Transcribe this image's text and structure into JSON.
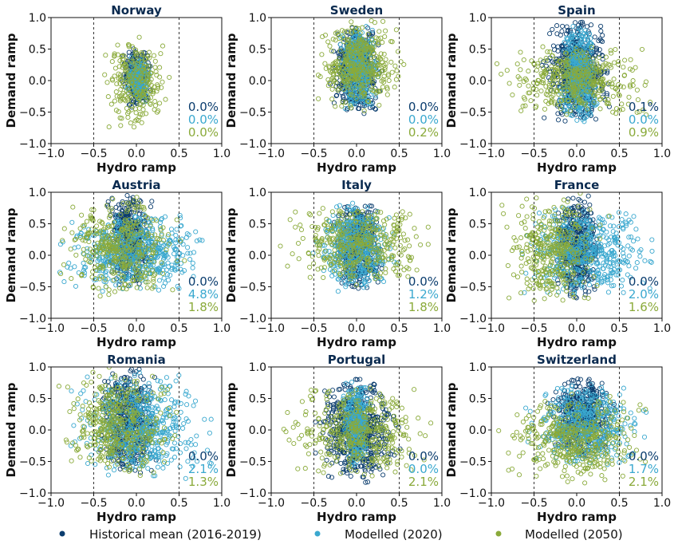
{
  "chart_data": {
    "type": "scatter",
    "xlabel": "Hydro ramp",
    "ylabel": "Demand ramp",
    "xlim": [
      -1.0,
      1.0
    ],
    "ylim": [
      -1.0,
      1.0
    ],
    "xticks": [
      "−1.0",
      "−0.5",
      "0.0",
      "0.5",
      "1.0"
    ],
    "yticks": [
      "1.0",
      "0.5",
      "0.0",
      "−0.5",
      "−1.0"
    ],
    "threshold_lines_x": [
      -0.5,
      0.5
    ],
    "grid": false,
    "legend_position": "bottom",
    "series": [
      {
        "name": "Historical mean (2016-2019)",
        "color": "#0b3d6e"
      },
      {
        "name": "Modelled (2020)",
        "color": "#3aa8cf"
      },
      {
        "name": "Modelled (2050)",
        "color": "#8aaa3a"
      }
    ],
    "panels": [
      {
        "title": "Norway",
        "percentages": [
          "0.0%",
          "0.0%",
          "0.0%"
        ],
        "spread": [
          {
            "x": [
              -0.2,
              0.2
            ],
            "y": [
              -0.45,
              0.55
            ],
            "n": 260
          },
          {
            "x": [
              -0.15,
              0.18
            ],
            "y": [
              -0.35,
              0.4
            ],
            "n": 200
          },
          {
            "x": [
              -0.5,
              0.5
            ],
            "y": [
              -0.8,
              0.75
            ],
            "n": 230
          }
        ]
      },
      {
        "title": "Sweden",
        "percentages": [
          "0.0%",
          "0.0%",
          "0.2%"
        ],
        "spread": [
          {
            "x": [
              -0.35,
              0.35
            ],
            "y": [
              -0.55,
              0.9
            ],
            "n": 420
          },
          {
            "x": [
              -0.25,
              0.3
            ],
            "y": [
              -0.5,
              0.9
            ],
            "n": 380
          },
          {
            "x": [
              -0.6,
              0.65
            ],
            "y": [
              -0.55,
              1.0
            ],
            "n": 360
          }
        ]
      },
      {
        "title": "Spain",
        "percentages": [
          "0.1%",
          "0.0%",
          "0.9%"
        ],
        "spread": [
          {
            "x": [
              -0.45,
              0.45
            ],
            "y": [
              -0.7,
              1.0
            ],
            "n": 520
          },
          {
            "x": [
              -0.25,
              0.3
            ],
            "y": [
              -0.7,
              0.9
            ],
            "n": 400
          },
          {
            "x": [
              -1.0,
              1.0
            ],
            "y": [
              -0.6,
              0.6
            ],
            "n": 380
          }
        ]
      },
      {
        "title": "Austria",
        "percentages": [
          "0.0%",
          "4.8%",
          "1.8%"
        ],
        "spread": [
          {
            "x": [
              -0.4,
              0.25
            ],
            "y": [
              -0.55,
              1.0
            ],
            "n": 380
          },
          {
            "x": [
              -1.0,
              1.0
            ],
            "y": [
              -0.6,
              0.7
            ],
            "n": 520
          },
          {
            "x": [
              -1.0,
              0.65
            ],
            "y": [
              -0.7,
              1.0
            ],
            "n": 360
          }
        ]
      },
      {
        "title": "Italy",
        "percentages": [
          "0.0%",
          "1.2%",
          "1.8%"
        ],
        "spread": [
          {
            "x": [
              -0.3,
              0.35
            ],
            "y": [
              -0.55,
              0.85
            ],
            "n": 420
          },
          {
            "x": [
              -0.6,
              0.55
            ],
            "y": [
              -0.6,
              0.85
            ],
            "n": 440
          },
          {
            "x": [
              -1.0,
              1.0
            ],
            "y": [
              -0.5,
              0.85
            ],
            "n": 360
          }
        ]
      },
      {
        "title": "France",
        "percentages": [
          "0.0%",
          "2.0%",
          "1.6%"
        ],
        "spread": [
          {
            "x": [
              -0.3,
              0.3
            ],
            "y": [
              -0.7,
              1.0
            ],
            "n": 420
          },
          {
            "x": [
              -0.8,
              1.0
            ],
            "y": [
              -0.65,
              0.8
            ],
            "n": 460
          },
          {
            "x": [
              -1.0,
              0.45
            ],
            "y": [
              -0.8,
              1.0
            ],
            "n": 340
          }
        ]
      },
      {
        "title": "Romania",
        "percentages": [
          "0.0%",
          "2.1%",
          "1.3%"
        ],
        "spread": [
          {
            "x": [
              -0.5,
              0.3
            ],
            "y": [
              -0.75,
              1.0
            ],
            "n": 440
          },
          {
            "x": [
              -0.9,
              1.0
            ],
            "y": [
              -0.8,
              0.95
            ],
            "n": 500
          },
          {
            "x": [
              -1.0,
              0.55
            ],
            "y": [
              -0.8,
              1.0
            ],
            "n": 380
          }
        ]
      },
      {
        "title": "Portugal",
        "percentages": [
          "0.0%",
          "0.0%",
          "2.1%"
        ],
        "spread": [
          {
            "x": [
              -0.55,
              0.55
            ],
            "y": [
              -0.85,
              0.85
            ],
            "n": 560
          },
          {
            "x": [
              -0.2,
              0.2
            ],
            "y": [
              -0.6,
              0.8
            ],
            "n": 300
          },
          {
            "x": [
              -1.0,
              1.0
            ],
            "y": [
              -0.8,
              0.7
            ],
            "n": 380
          }
        ]
      },
      {
        "title": "Switzerland",
        "percentages": [
          "0.0%",
          "1.7%",
          "2.1%"
        ],
        "spread": [
          {
            "x": [
              -0.4,
              0.5
            ],
            "y": [
              -0.45,
              0.85
            ],
            "n": 400
          },
          {
            "x": [
              -0.7,
              0.9
            ],
            "y": [
              -0.6,
              0.75
            ],
            "n": 440
          },
          {
            "x": [
              -1.0,
              1.0
            ],
            "y": [
              -0.85,
              0.6
            ],
            "n": 380
          }
        ]
      }
    ]
  }
}
